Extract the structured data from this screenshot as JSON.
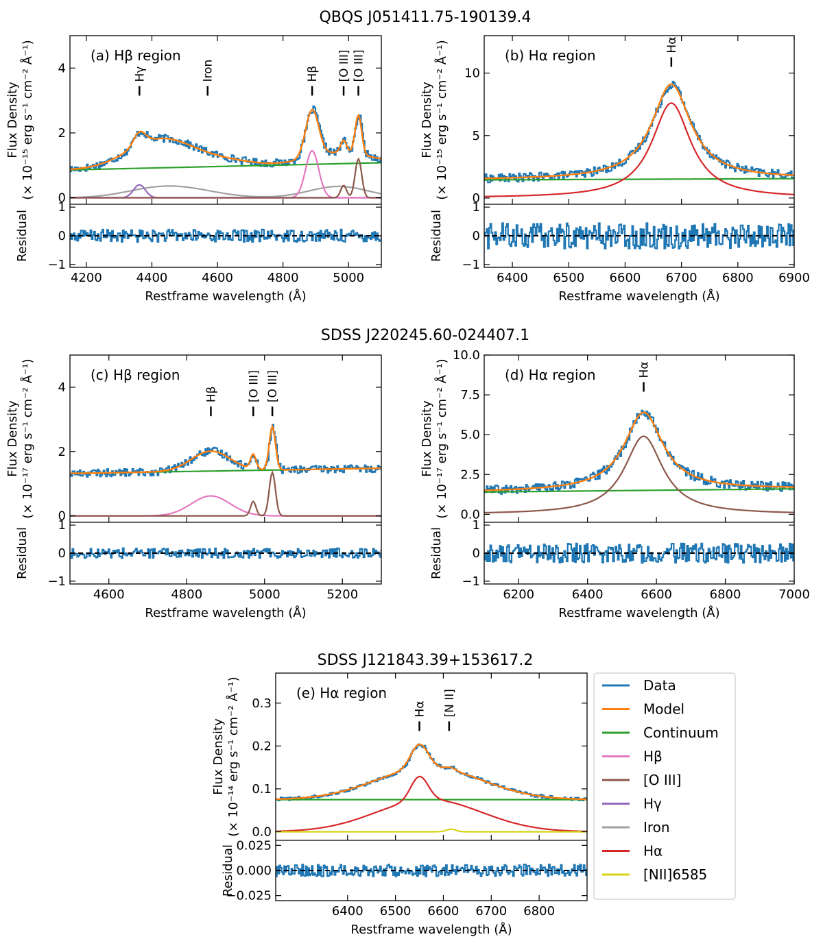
{
  "colors": {
    "data": "#1f77b4",
    "model": "#ff7f0e",
    "continuum": "#2ca02c",
    "hbeta": "#e377c2",
    "oiii": "#8c564b",
    "hgamma": "#9467bd",
    "iron": "#a0a0a0",
    "halpha": "#d62728",
    "nii": "#d4d414"
  },
  "xlabel": "Restframe wavelength (Å)",
  "residual_label": "Residual",
  "legend": {
    "entries": [
      {
        "label": "Data",
        "color": "#1f77b4"
      },
      {
        "label": "Model",
        "color": "#ff7f0e"
      },
      {
        "label": "Continuum",
        "color": "#2ca02c"
      },
      {
        "label": "Hβ",
        "color": "#e377c2"
      },
      {
        "label": "[O III]",
        "color": "#8c564b"
      },
      {
        "label": "Hγ",
        "color": "#9467bd"
      },
      {
        "label": "Iron",
        "color": "#a0a0a0"
      },
      {
        "label": "Hα",
        "color": "#d62728"
      },
      {
        "label": "[NII]6585",
        "color": "#d4d414"
      }
    ]
  },
  "chart_data": [
    {
      "type": "line",
      "id": "a",
      "object_title": "QBQS J051411.75-190139.4",
      "panel_label": "(a) Hβ region",
      "ylabel_lines": [
        "Flux Density",
        "(× 10⁻¹⁵ erg s⁻¹ cm⁻² Å⁻¹)"
      ],
      "xlim": [
        4150,
        5100
      ],
      "ylim": [
        -0.2,
        5.0
      ],
      "xticks": [
        4200,
        4400,
        4600,
        4800,
        5000
      ],
      "yticks": [
        0,
        2,
        4
      ],
      "residual_ylim": [
        -1.1,
        1.1
      ],
      "residual_yticks": [
        -1,
        0,
        1
      ],
      "noise": 0.12,
      "residual_noise": 0.22,
      "line_markers": [
        {
          "label": "Hγ",
          "x": 4362,
          "y": 3.15
        },
        {
          "label": "Iron",
          "x": 4570,
          "y": 3.15
        },
        {
          "label": "Hβ",
          "x": 4889,
          "y": 3.15
        },
        {
          "label": "[O III]",
          "x": 4985,
          "y": 3.15
        },
        {
          "label": "[O III]",
          "x": 5030,
          "y": 3.15
        }
      ],
      "components": [
        {
          "name": "Continuum",
          "color": "#2ca02c",
          "kind": "linear",
          "x": [
            4150,
            5100
          ],
          "y": [
            0.86,
            1.08
          ]
        },
        {
          "name": "Iron",
          "color": "#a0a0a0",
          "kind": "sum",
          "base": 0,
          "gaussians": [
            [
              4480,
              0.3,
              110
            ],
            [
              4380,
              0.1,
              90
            ],
            [
              4970,
              0.35,
              90
            ]
          ]
        },
        {
          "name": "Hγ",
          "color": "#9467bd",
          "kind": "sum",
          "base": 0,
          "gaussians": [
            [
              4362,
              0.4,
              18
            ]
          ]
        },
        {
          "name": "Hβ",
          "color": "#e377c2",
          "kind": "sum",
          "base": 0,
          "gaussians": [
            [
              4889,
              1.45,
              20
            ]
          ]
        },
        {
          "name": "[O III]",
          "color": "#8c564b",
          "kind": "sum",
          "base": 0,
          "gaussians": [
            [
              4985,
              0.38,
              9
            ],
            [
              5030,
              1.2,
              10
            ]
          ]
        }
      ],
      "model_extra": [
        [
          4420,
          0.55,
          95
        ],
        [
          4640,
          0.1,
          80
        ]
      ]
    },
    {
      "type": "line",
      "id": "b",
      "object_title": "",
      "panel_label": "(b) Hα region",
      "ylabel_lines": [
        "Flux Density",
        "(× 10⁻¹⁵ erg s⁻¹ cm⁻² Å⁻¹)"
      ],
      "xlim": [
        6350,
        6900
      ],
      "ylim": [
        -0.5,
        13.0
      ],
      "xticks": [
        6400,
        6500,
        6600,
        6700,
        6800,
        6900
      ],
      "yticks": [
        0,
        5,
        10
      ],
      "residual_ylim": [
        -1.1,
        1.1
      ],
      "residual_yticks": [
        -1,
        0,
        1
      ],
      "noise": 0.35,
      "residual_noise": 0.45,
      "line_markers": [
        {
          "label": "Hα",
          "x": 6682,
          "y": 10.5
        }
      ],
      "components": [
        {
          "name": "Continuum",
          "color": "#2ca02c",
          "kind": "linear",
          "x": [
            6350,
            6900
          ],
          "y": [
            1.45,
            1.55
          ]
        },
        {
          "name": "Hα",
          "color": "#d62728",
          "kind": "lorentz",
          "base": 0,
          "lorentzians": [
            [
              6682,
              7.6,
              42
            ]
          ]
        }
      ],
      "model_extra": []
    },
    {
      "type": "line",
      "id": "c",
      "object_title": "SDSS J220245.60-024407.1",
      "panel_label": "(c) Hβ region",
      "ylabel_lines": [
        "Flux Density",
        "(× 10⁻¹⁷ erg s⁻¹ cm⁻² Å⁻¹)"
      ],
      "xlim": [
        4500,
        5300
      ],
      "ylim": [
        -0.2,
        5.0
      ],
      "xticks": [
        4600,
        4800,
        5000,
        5200
      ],
      "yticks": [
        0,
        2,
        4
      ],
      "residual_ylim": [
        -1.1,
        1.1
      ],
      "residual_yticks": [
        -1,
        0,
        1
      ],
      "noise": 0.12,
      "residual_noise": 0.18,
      "line_markers": [
        {
          "label": "Hβ",
          "x": 4862,
          "y": 3.1
        },
        {
          "label": "[O III]",
          "x": 4971,
          "y": 3.1
        },
        {
          "label": "[O III]",
          "x": 5020,
          "y": 3.1
        }
      ],
      "components": [
        {
          "name": "Continuum",
          "color": "#2ca02c",
          "kind": "linear",
          "x": [
            4500,
            5300
          ],
          "y": [
            1.32,
            1.48
          ]
        },
        {
          "name": "Hβ",
          "color": "#e377c2",
          "kind": "sum",
          "base": 0,
          "gaussians": [
            [
              4862,
              0.62,
              50
            ]
          ]
        },
        {
          "name": "[O III]",
          "color": "#8c564b",
          "kind": "sum",
          "base": 0,
          "gaussians": [
            [
              4971,
              0.45,
              7
            ],
            [
              5020,
              1.35,
              8
            ]
          ]
        }
      ],
      "model_extra": []
    },
    {
      "type": "line",
      "id": "d",
      "object_title": "",
      "panel_label": "(d) Hα region",
      "ylabel_lines": [
        "Flux Density",
        "(× 10⁻¹⁷ erg s⁻¹ cm⁻² Å⁻¹)"
      ],
      "xlim": [
        6100,
        7000
      ],
      "ylim": [
        -0.5,
        10.0
      ],
      "xticks": [
        6200,
        6400,
        6600,
        6800,
        7000
      ],
      "yticks": [
        0.0,
        2.5,
        5.0,
        7.5,
        10.0
      ],
      "ytick_labels": [
        "0.0",
        "2.5",
        "5.0",
        "7.5",
        "10.0"
      ],
      "residual_ylim": [
        -1.1,
        1.1
      ],
      "residual_yticks": [
        -1,
        0,
        1
      ],
      "noise": 0.3,
      "residual_noise": 0.35,
      "line_markers": [
        {
          "label": "Hα",
          "x": 6563,
          "y": 7.7
        }
      ],
      "components": [
        {
          "name": "Continuum",
          "color": "#2ca02c",
          "kind": "linear",
          "x": [
            6100,
            7000
          ],
          "y": [
            1.4,
            1.6
          ]
        },
        {
          "name": "Hα",
          "color": "#8c564b",
          "kind": "lorentz",
          "base": 0,
          "lorentzians": [
            [
              6563,
              4.9,
              68
            ]
          ]
        }
      ],
      "model_extra": []
    },
    {
      "type": "line",
      "id": "e",
      "object_title": "SDSS J121843.39+153617.2",
      "panel_label": "(e) Hα region",
      "ylabel_lines": [
        "Flux Density",
        "(× 10⁻¹⁴ erg s⁻¹ cm⁻² Å⁻¹)"
      ],
      "xlim": [
        6250,
        6900
      ],
      "ylim": [
        -0.02,
        0.37
      ],
      "xticks": [
        6400,
        6500,
        6600,
        6700,
        6800
      ],
      "yticks": [
        0.0,
        0.1,
        0.2,
        0.3
      ],
      "ytick_labels": [
        "0.0",
        "0.1",
        "0.2",
        "0.3"
      ],
      "residual_ylim": [
        -0.03,
        0.03
      ],
      "residual_yticks": [
        -0.025,
        0.0,
        0.025
      ],
      "residual_ytick_labels": [
        "−0.025",
        "0.000",
        "0.025"
      ],
      "noise": 0.004,
      "residual_noise": 0.006,
      "line_markers": [
        {
          "label": "Hα",
          "x": 6550,
          "y": 0.235
        },
        {
          "label": "[N II]",
          "x": 6612,
          "y": 0.235
        }
      ],
      "components": [
        {
          "name": "Continuum",
          "color": "#2ca02c",
          "kind": "linear",
          "x": [
            6250,
            6900
          ],
          "y": [
            0.075,
            0.075
          ]
        },
        {
          "name": "Hα",
          "color": "#d62728",
          "kind": "sum",
          "base": 0,
          "gaussians": [
            [
              6550,
              0.055,
              18
            ],
            [
              6570,
              0.075,
              110
            ]
          ]
        },
        {
          "name": "[NII]6585",
          "color": "#d4d414",
          "kind": "sum",
          "base": 0,
          "gaussians": [
            [
              6616,
              0.006,
              10
            ]
          ]
        }
      ],
      "model_extra": []
    }
  ]
}
